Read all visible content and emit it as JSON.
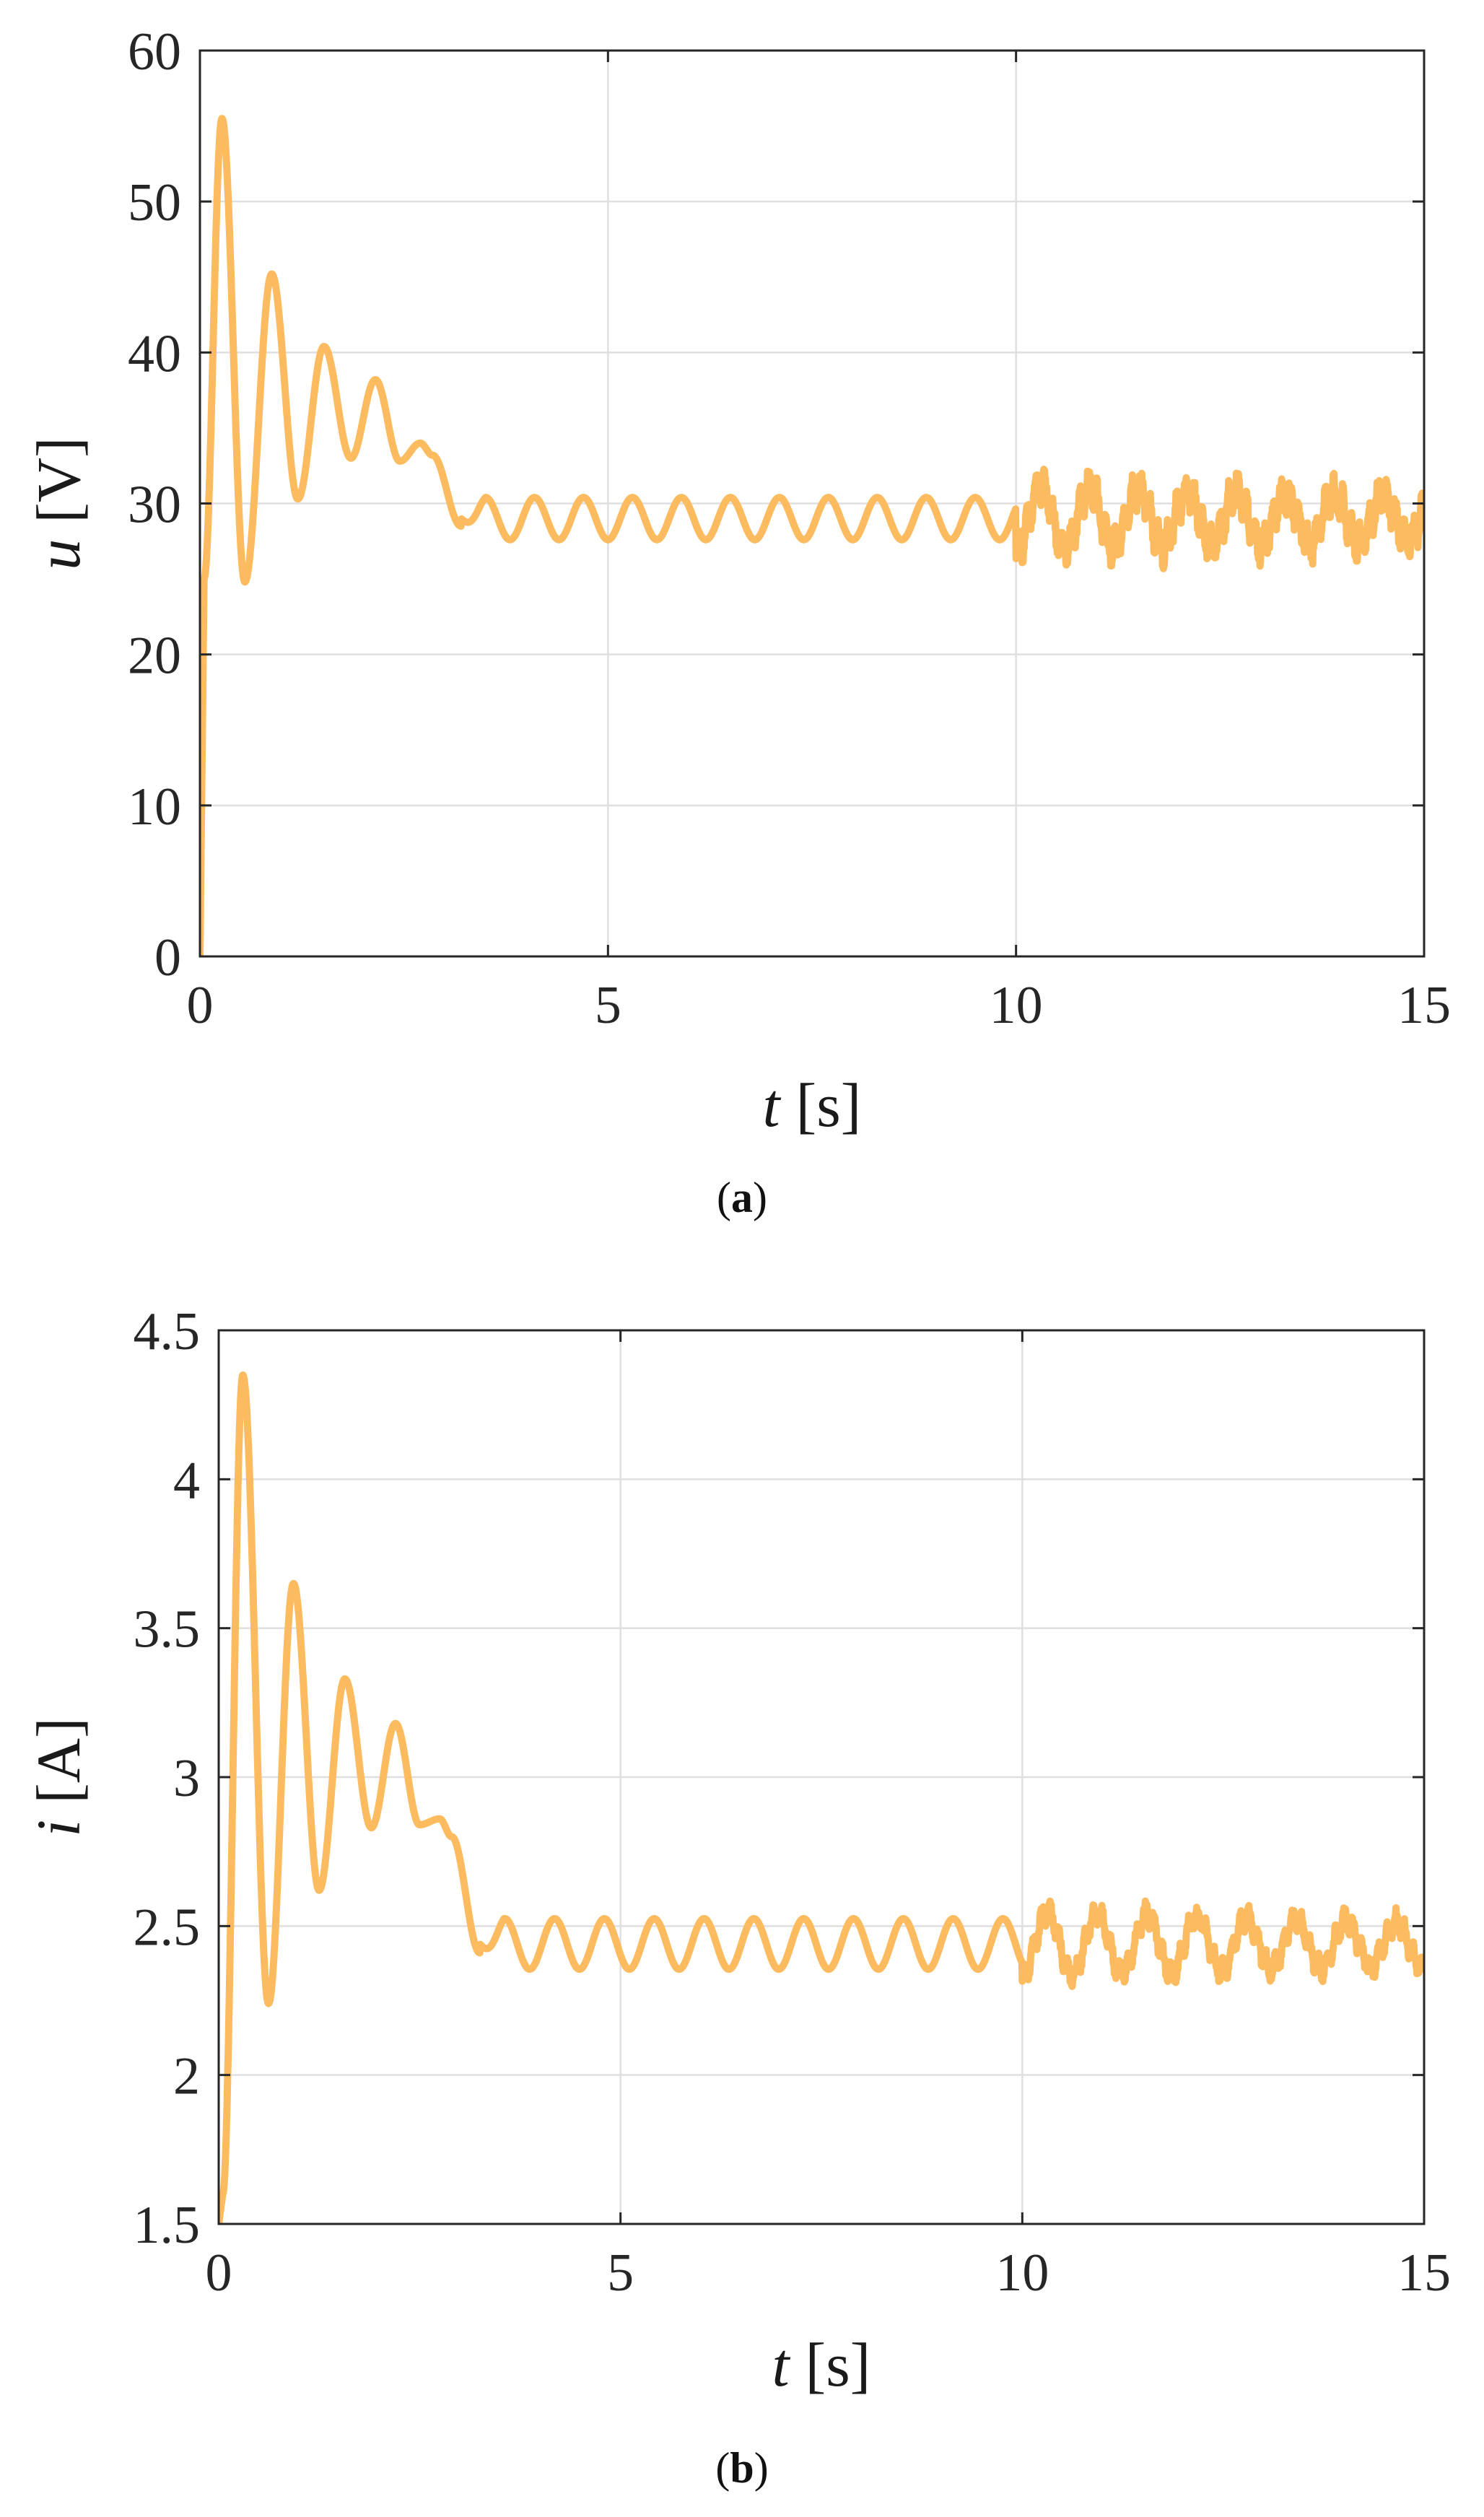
{
  "chart_data": [
    {
      "type": "line",
      "panel": "a",
      "caption_letter": "a",
      "xlabel_var": "t",
      "xlabel_unit": "[s]",
      "ylabel_var": "u",
      "ylabel_unit": "[V]",
      "xlim": [
        0,
        15
      ],
      "ylim": [
        0,
        60
      ],
      "xticks": [
        0,
        5,
        10,
        15
      ],
      "xtick_labels": [
        "0",
        "5",
        "10",
        "15"
      ],
      "yticks": [
        0,
        10,
        20,
        30,
        40,
        50,
        60
      ],
      "ytick_labels": [
        "0",
        "10",
        "20",
        "30",
        "40",
        "50",
        "60"
      ],
      "grid": true,
      "line_color": "#fdbb5f",
      "series": [
        {
          "description_points": "approximate transient peaks/troughs",
          "x": [
            0.0,
            0.05,
            0.27,
            0.55,
            0.88,
            1.2,
            1.52,
            1.85,
            2.15,
            2.45,
            2.7,
            2.85,
            3.2,
            10.0,
            15.0
          ],
          "y": [
            0.0,
            25.0,
            55.5,
            24.8,
            45.2,
            30.3,
            40.4,
            33.0,
            38.2,
            32.8,
            34.0,
            33.2,
            28.5,
            28.9,
            29.5
          ],
          "steady_mean": 29.0,
          "steady_amplitude": 1.4,
          "steady_period": 0.6,
          "disturbed_from": 10.0,
          "disturbed_amplitude": 2.2,
          "disturbed_noise_amplitude": 1.6
        }
      ]
    },
    {
      "type": "line",
      "panel": "b",
      "caption_letter": "b",
      "xlabel_var": "t",
      "xlabel_unit": "[s]",
      "ylabel_var": "i",
      "ylabel_unit": "[A]",
      "xlim": [
        0,
        15
      ],
      "ylim": [
        1.5,
        4.5
      ],
      "xticks": [
        0,
        5,
        10,
        15
      ],
      "xtick_labels": [
        "0",
        "5",
        "10",
        "15"
      ],
      "yticks": [
        1.5,
        2,
        2.5,
        3,
        3.5,
        4,
        4.5
      ],
      "ytick_labels": [
        "1.5",
        "2",
        "2.5",
        "3",
        "3.5",
        "4",
        "4.5"
      ],
      "grid": true,
      "line_color": "#fdbb5f",
      "series": [
        {
          "description_points": "approximate transient peaks/troughs",
          "x": [
            0.0,
            0.05,
            0.3,
            0.62,
            0.93,
            1.25,
            1.57,
            1.9,
            2.2,
            2.5,
            2.75,
            2.9,
            3.25,
            10.0,
            15.0
          ],
          "y": [
            1.5,
            1.6,
            4.35,
            2.24,
            3.65,
            2.62,
            3.33,
            2.83,
            3.18,
            2.84,
            2.86,
            2.8,
            2.41,
            2.44,
            2.47
          ],
          "steady_mean": 2.44,
          "steady_amplitude": 0.085,
          "steady_period": 0.62,
          "disturbed_from": 10.0,
          "disturbed_amplitude": 0.11,
          "disturbed_noise_amplitude": 0.05
        }
      ]
    }
  ]
}
